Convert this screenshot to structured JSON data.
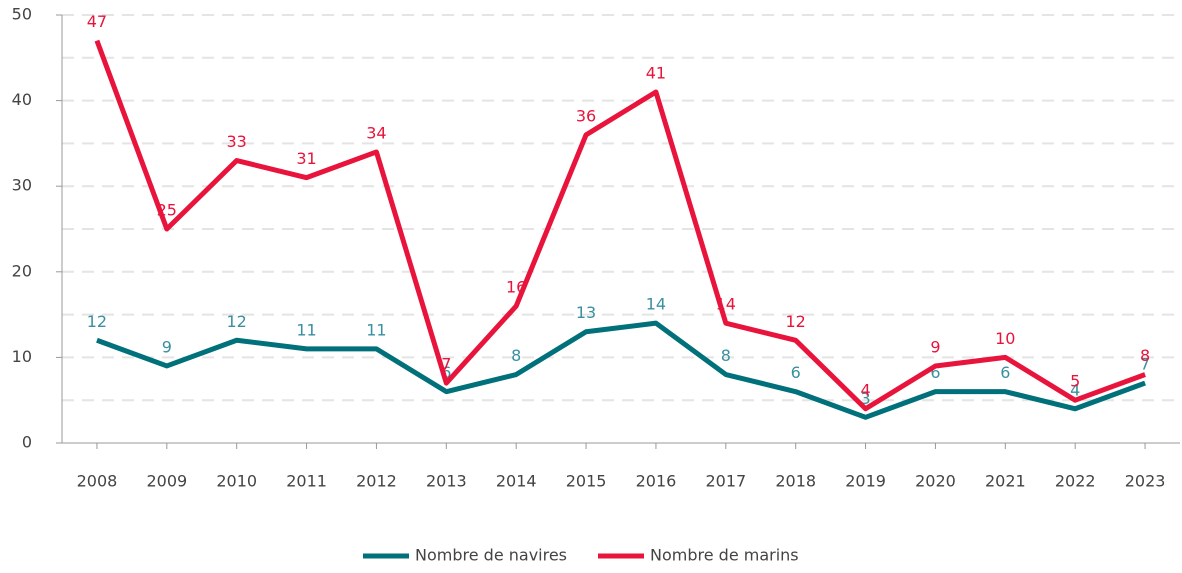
{
  "chart_data": {
    "type": "line",
    "categories": [
      "2008",
      "2009",
      "2010",
      "2011",
      "2012",
      "2013",
      "2014",
      "2015",
      "2016",
      "2017",
      "2018",
      "2019",
      "2020",
      "2021",
      "2022",
      "2023"
    ],
    "series": [
      {
        "name": "Nombre de navires",
        "color": "#00707a",
        "label_color": "#3a8fa0",
        "values": [
          12,
          9,
          12,
          11,
          11,
          6,
          8,
          13,
          14,
          8,
          6,
          3,
          6,
          6,
          4,
          7
        ]
      },
      {
        "name": "Nombre de marins",
        "color": "#e8143c",
        "label_color": "#e8143c",
        "values": [
          47,
          25,
          33,
          31,
          34,
          7,
          16,
          36,
          41,
          14,
          12,
          4,
          9,
          10,
          5,
          8
        ]
      }
    ],
    "ylim": [
      0,
      50
    ],
    "yticks": [
      0,
      10,
      20,
      30,
      40,
      50
    ],
    "minor_yticks": [
      5,
      15,
      25,
      35,
      45
    ],
    "grid": true,
    "legend": "bottom"
  }
}
